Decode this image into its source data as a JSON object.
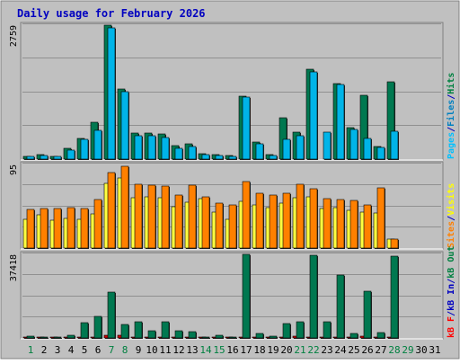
{
  "chart_data": [
    {
      "type": "bar",
      "title": "Daily usage for February 2026",
      "panel": "hits-files-pages",
      "ymax_label": "2759",
      "ylim": [
        0,
        2759
      ],
      "legend": {
        "placement": "right",
        "items": [
          {
            "label": "Pages",
            "color": "#00c0ff"
          },
          {
            "label": "/",
            "color": "#0000c0"
          },
          {
            "label": "Files",
            "color": "#0080c0"
          },
          {
            "label": "/",
            "color": "#0000c0"
          },
          {
            "label": "Hits",
            "color": "#008040"
          }
        ]
      },
      "categories": [
        "1",
        "2",
        "3",
        "4",
        "5",
        "6",
        "7",
        "8",
        "9",
        "10",
        "11",
        "12",
        "13",
        "14",
        "15",
        "16",
        "17",
        "18",
        "19",
        "20",
        "21",
        "22",
        "23",
        "24",
        "25",
        "26",
        "27",
        "28",
        "29",
        "30",
        "31"
      ],
      "series": [
        {
          "name": "Hits",
          "color": "#007850",
          "values": [
            60,
            95,
            60,
            215,
            430,
            760,
            2759,
            1440,
            530,
            530,
            510,
            270,
            310,
            120,
            85,
            80,
            1300,
            360,
            100,
            850,
            560,
            1860,
            0,
            1560,
            640,
            1320,
            260,
            1600,
            0,
            0,
            0
          ]
        },
        {
          "name": "Files",
          "color": "#00b4e8",
          "values": [
            50,
            80,
            50,
            190,
            400,
            600,
            2700,
            1380,
            480,
            480,
            450,
            220,
            260,
            90,
            70,
            60,
            1280,
            320,
            80,
            400,
            480,
            1800,
            550,
            1540,
            610,
            420,
            240,
            580,
            0,
            0,
            0
          ]
        }
      ]
    },
    {
      "type": "bar",
      "panel": "sites-visits",
      "ymax_label": "95",
      "ylim": [
        0,
        95
      ],
      "legend": {
        "placement": "right",
        "items": [
          {
            "label": "Sites",
            "color": "#ff8000"
          },
          {
            "label": "/",
            "color": "#0000c0"
          },
          {
            "label": "Visits",
            "color": "#ffff00"
          }
        ]
      },
      "categories": [
        "1",
        "2",
        "3",
        "4",
        "5",
        "6",
        "7",
        "8",
        "9",
        "10",
        "11",
        "12",
        "13",
        "14",
        "15",
        "16",
        "17",
        "18",
        "19",
        "20",
        "21",
        "22",
        "23",
        "24",
        "25",
        "26",
        "27",
        "28",
        "29",
        "30",
        "31"
      ],
      "series": [
        {
          "name": "Visits",
          "color": "#ffff40",
          "values": [
            33,
            38,
            32,
            34,
            33,
            39,
            74,
            80,
            57,
            58,
            57,
            47,
            52,
            56,
            41,
            33,
            53,
            49,
            46,
            51,
            57,
            58,
            45,
            46,
            43,
            41,
            40,
            10,
            0,
            0,
            0
          ]
        },
        {
          "name": "Sites",
          "color": "#ff8000",
          "values": [
            44,
            45,
            45,
            46,
            45,
            55,
            86,
            93,
            73,
            72,
            70,
            60,
            72,
            58,
            51,
            49,
            76,
            62,
            60,
            62,
            73,
            67,
            56,
            55,
            54,
            49,
            68,
            10,
            0,
            0,
            0
          ]
        }
      ]
    },
    {
      "type": "bar",
      "panel": "kbytes",
      "ymax_label": "37418",
      "ylim": [
        0,
        37418
      ],
      "legend": {
        "placement": "right",
        "items": [
          {
            "label": "kB F",
            "color": "#ff0000"
          },
          {
            "label": "/",
            "color": "#0000c0"
          },
          {
            "label": "kB In",
            "color": "#0000c0"
          },
          {
            "label": "/",
            "color": "#0000c0"
          },
          {
            "label": "kB Out",
            "color": "#008040"
          }
        ]
      },
      "categories": [
        "1",
        "2",
        "3",
        "4",
        "5",
        "6",
        "7",
        "8",
        "9",
        "10",
        "11",
        "12",
        "13",
        "14",
        "15",
        "16",
        "17",
        "18",
        "19",
        "20",
        "21",
        "22",
        "23",
        "24",
        "25",
        "26",
        "27",
        "28",
        "29",
        "30",
        "31"
      ],
      "series": [
        {
          "name": "kB F",
          "color": "#d00000",
          "values": [
            300,
            300,
            300,
            300,
            300,
            600,
            1400,
            1200,
            600,
            600,
            500,
            500,
            400,
            300,
            300,
            300,
            400,
            400,
            300,
            600,
            700,
            600,
            400,
            500,
            400,
            1000,
            500,
            500,
            0,
            0,
            0
          ]
        },
        {
          "name": "kB Out",
          "color": "#007850",
          "values": [
            700,
            600,
            400,
            1400,
            6800,
            9800,
            20500,
            6100,
            7200,
            3100,
            7200,
            3400,
            2800,
            600,
            1100,
            600,
            37418,
            2000,
            900,
            6300,
            7200,
            37000,
            7300,
            28200,
            1900,
            21100,
            2500,
            36500,
            0,
            0,
            0
          ]
        }
      ]
    }
  ],
  "day_labels": [
    {
      "text": "1",
      "color": "#008040"
    },
    {
      "text": "2",
      "color": "#000000"
    },
    {
      "text": "3",
      "color": "#000000"
    },
    {
      "text": "4",
      "color": "#000000"
    },
    {
      "text": "5",
      "color": "#000000"
    },
    {
      "text": "6",
      "color": "#000000"
    },
    {
      "text": "7",
      "color": "#008040"
    },
    {
      "text": "8",
      "color": "#008040"
    },
    {
      "text": "9",
      "color": "#000000"
    },
    {
      "text": "10",
      "color": "#000000"
    },
    {
      "text": "11",
      "color": "#000000"
    },
    {
      "text": "12",
      "color": "#000000"
    },
    {
      "text": "13",
      "color": "#000000"
    },
    {
      "text": "14",
      "color": "#008040"
    },
    {
      "text": "15",
      "color": "#008040"
    },
    {
      "text": "16",
      "color": "#000000"
    },
    {
      "text": "17",
      "color": "#000000"
    },
    {
      "text": "18",
      "color": "#000000"
    },
    {
      "text": "19",
      "color": "#000000"
    },
    {
      "text": "20",
      "color": "#000000"
    },
    {
      "text": "21",
      "color": "#008040"
    },
    {
      "text": "22",
      "color": "#008040"
    },
    {
      "text": "23",
      "color": "#000000"
    },
    {
      "text": "24",
      "color": "#000000"
    },
    {
      "text": "25",
      "color": "#000000"
    },
    {
      "text": "26",
      "color": "#000000"
    },
    {
      "text": "27",
      "color": "#000000"
    },
    {
      "text": "28",
      "color": "#008040"
    },
    {
      "text": "29",
      "color": "#008040"
    },
    {
      "text": "30",
      "color": "#000000"
    },
    {
      "text": "31",
      "color": "#000000"
    }
  ],
  "colors": {
    "background": "#c0c0c0",
    "plot_background": "#c0c0c0",
    "title": "#0000c0",
    "grid": "#909090",
    "shadow": "#2a2a2a"
  }
}
